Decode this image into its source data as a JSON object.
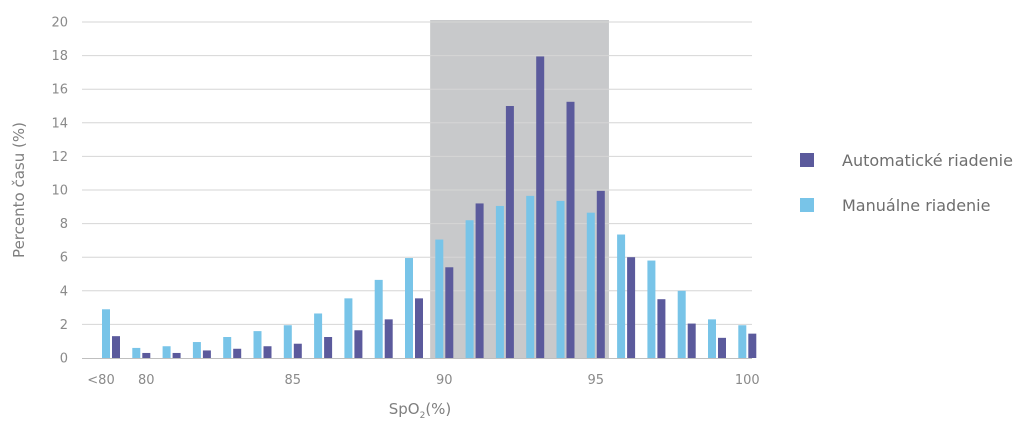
{
  "chart_data": {
    "type": "bar",
    "xlabel_main": "SpO",
    "xlabel_sub": "2",
    "xlabel_unit": "(%)",
    "ylabel": "Percento času (%)",
    "ylim": [
      0,
      20
    ],
    "yticks": [
      "0",
      "2",
      "4",
      "6",
      "8",
      "10",
      "12",
      "14",
      "16",
      "18",
      "20"
    ],
    "grid": true,
    "legend_position": "right",
    "highlight_range": [
      90,
      95
    ],
    "categories": [
      "<80",
      "80",
      "81",
      "82",
      "83",
      "84",
      "85",
      "86",
      "87",
      "88",
      "89",
      "90",
      "91",
      "92",
      "93",
      "94",
      "95",
      "96",
      "97",
      "98",
      "99",
      "100"
    ],
    "category_labels": [
      "<80",
      "80",
      "",
      "",
      "",
      "",
      "85",
      "",
      "",
      "",
      "",
      "90",
      "",
      "",
      "",
      "",
      "95",
      "",
      "",
      "",
      "",
      "100"
    ],
    "series": [
      {
        "name": "Automatické riadenie",
        "color": "#5b5a9c",
        "values": [
          1.3,
          0.3,
          0.3,
          0.45,
          0.55,
          0.7,
          0.85,
          1.25,
          1.65,
          2.3,
          3.55,
          5.4,
          9.2,
          15.0,
          17.95,
          15.25,
          9.95,
          6.0,
          3.5,
          2.05,
          1.2,
          1.45
        ]
      },
      {
        "name": "Manuálne riadenie",
        "color": "#78c4e8",
        "values": [
          2.9,
          0.6,
          0.7,
          0.95,
          1.25,
          1.6,
          1.95,
          2.65,
          3.55,
          4.65,
          5.95,
          7.05,
          8.2,
          9.05,
          9.65,
          9.35,
          8.65,
          7.35,
          5.8,
          4.0,
          2.3,
          1.95
        ]
      }
    ]
  }
}
